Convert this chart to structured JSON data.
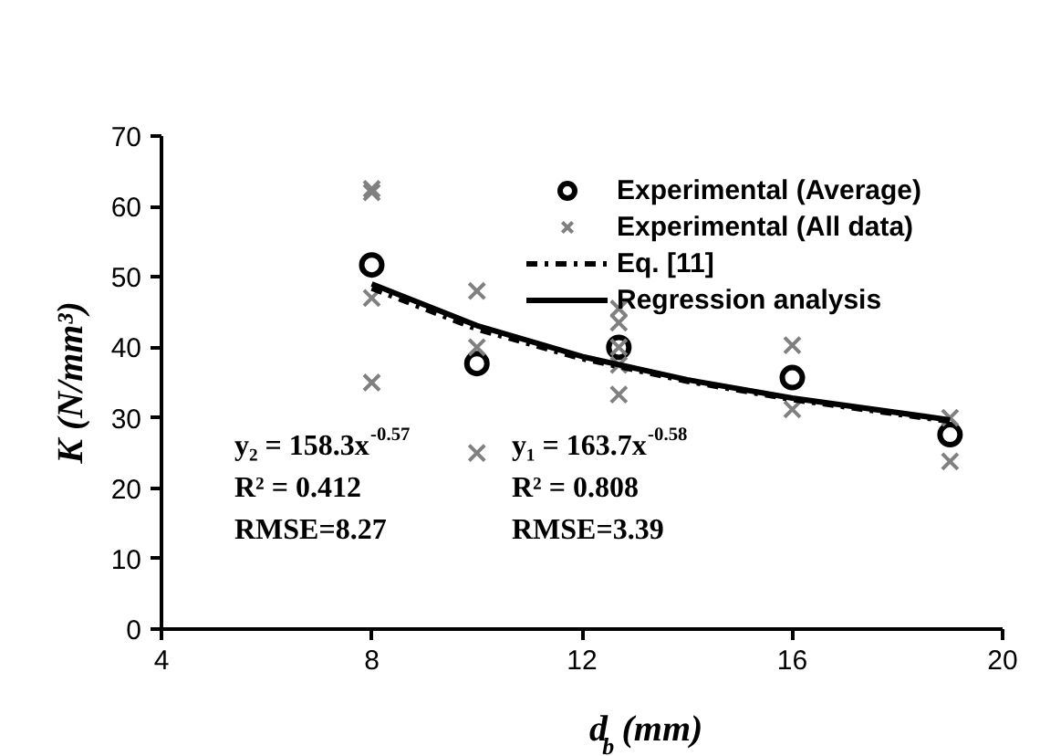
{
  "chart_data": {
    "type": "scatter",
    "xlabel": "d$_{b}$ (mm)",
    "ylabel": "K (N/mm³)",
    "xlim": [
      4,
      20
    ],
    "ylim": [
      0,
      70
    ],
    "xticks": [
      4,
      8,
      12,
      16,
      20
    ],
    "yticks": [
      0,
      10,
      20,
      30,
      40,
      50,
      60,
      70
    ],
    "grid": false,
    "legend": "top right",
    "series": [
      {
        "name": "Experimental (Average)",
        "color": "#000000",
        "marker": "circle",
        "x": [
          8,
          10,
          12.7,
          16,
          19
        ],
        "values": [
          51.7,
          37.7,
          40,
          35.7,
          27.6
        ]
      },
      {
        "name": "Experimental (All data)",
        "color": "#808080",
        "marker": "cross",
        "x": [
          8,
          8,
          8,
          8,
          10,
          10,
          10,
          12.7,
          12.7,
          12.7,
          12.7,
          12.7,
          16,
          16,
          19,
          19
        ],
        "values": [
          62.5,
          62,
          47,
          35,
          48,
          40,
          25,
          45.5,
          43.5,
          40,
          37.5,
          33.3,
          40.3,
          31.2,
          30,
          23.8
        ]
      },
      {
        "name": "Eq. [11]",
        "color": "#000000",
        "type": "line",
        "line_style": "dashdot",
        "x": [
          8,
          10,
          12,
          14,
          16,
          19
        ],
        "values": [
          48.4,
          42.6,
          38.4,
          35.2,
          32.6,
          29.5
        ]
      },
      {
        "name": "Regression analysis",
        "color": "#000000",
        "type": "line",
        "line_style": "solid",
        "x": [
          8,
          10,
          12,
          14,
          16,
          19
        ],
        "values": [
          49.0,
          43.1,
          38.7,
          35.4,
          32.8,
          29.7
        ]
      }
    ],
    "annotations": [
      "y₂ = 158.3x$^{-0.57}$",
      "R² = 0.412",
      "RMSE=8.27",
      "y₁ = 163.7x$^{-0.58}$",
      "R² = 0.808",
      "RMSE=3.39"
    ]
  }
}
